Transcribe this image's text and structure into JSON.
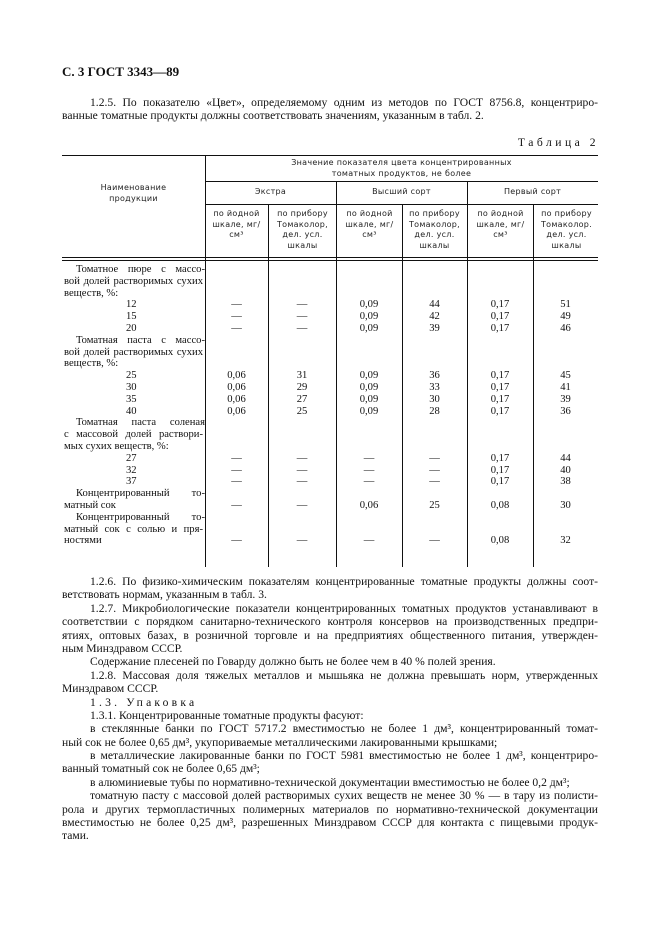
{
  "header": "С. 3 ГОСТ 3343—89",
  "para_125": [
    "1.2.5. По показателю «Цвет», определяемому одним из методов по ГОСТ 8756.8, концентриро-",
    "ванные томатные продукты должны соответствовать значениям, указанным в табл. 2."
  ],
  "table_caption": "Таблица 2",
  "table": {
    "col_product": "Наименование продукции",
    "group_header": "Значение показателя цвета концентрированных томатных продуктов, не более",
    "grades": [
      "Экстра",
      "Высший сорт",
      "Первый сорт"
    ],
    "sub_headers": [
      "по йодной шкале, мг/см³",
      "по прибору Томаколор, дел. усл. шкалы",
      "по йодной шкале, мг/см³",
      "по прибору Томаколор, дел. усл. шкалы",
      "по йодной шкале, мг/см³",
      "по прибору Томаколор. дел. усл. шкалы"
    ],
    "products": [
      {
        "name_lines": [
          "Томатное пюре с массо-",
          "вой долей растворимых сухих",
          "веществ, %:"
        ],
        "rows": [
          {
            "label": "12",
            "values": [
              "—",
              "—",
              "0,09",
              "44",
              "0,17",
              "51"
            ]
          },
          {
            "label": "15",
            "values": [
              "—",
              "—",
              "0,09",
              "42",
              "0,17",
              "49"
            ]
          },
          {
            "label": "20",
            "values": [
              "—",
              "—",
              "0,09",
              "39",
              "0,17",
              "46"
            ]
          }
        ]
      },
      {
        "name_lines": [
          "Томатная паста с массо-",
          "вой долей растворимых сухих",
          "веществ, %:"
        ],
        "rows": [
          {
            "label": "25",
            "values": [
              "0,06",
              "31",
              "0,09",
              "36",
              "0,17",
              "45"
            ]
          },
          {
            "label": "30",
            "values": [
              "0,06",
              "29",
              "0,09",
              "33",
              "0,17",
              "41"
            ]
          },
          {
            "label": "35",
            "values": [
              "0,06",
              "27",
              "0,09",
              "30",
              "0,17",
              "39"
            ]
          },
          {
            "label": "40",
            "values": [
              "0,06",
              "25",
              "0,09",
              "28",
              "0,17",
              "36"
            ]
          }
        ]
      },
      {
        "name_lines": [
          "Томатная паста соленая",
          "с массовой долей раствори-",
          "мых сухих веществ, %:"
        ],
        "rows": [
          {
            "label": "27",
            "values": [
              "—",
              "—",
              "—",
              "—",
              "0,17",
              "44"
            ]
          },
          {
            "label": "32",
            "values": [
              "—",
              "—",
              "—",
              "—",
              "0,17",
              "40"
            ]
          },
          {
            "label": "37",
            "values": [
              "—",
              "—",
              "—",
              "—",
              "0,17",
              "38"
            ]
          }
        ]
      },
      {
        "name_lines": [
          "Концентрированный то-",
          "матный сок"
        ],
        "values": [
          "—",
          "—",
          "0,06",
          "25",
          "0,08",
          "30"
        ]
      },
      {
        "name_lines": [
          "Концентрированный то-",
          "матный сок с солью и пря-",
          "ностями"
        ],
        "values": [
          "—",
          "—",
          "—",
          "—",
          "0,08",
          "32"
        ]
      }
    ]
  },
  "body_text": [
    {
      "lines": [
        "1.2.6. По физико-химическим показателям концентрированные томатные продукты должны соот-",
        "ветствовать нормам, указанным в табл. 3."
      ]
    },
    {
      "lines": [
        "1.2.7. Микробиологические показатели концентрированных томатных продуктов устанавливают в",
        "соответствии с порядком санитарно-технического контроля консервов на производственных предпри-",
        "ятиях, оптовых базах, в розничной торговле и на предприятиях общественного питания, утвержден-",
        "ным Минздравом СССР."
      ]
    },
    {
      "lines": [
        "Содержание плесеней по Говарду должно быть не более чем в 40 % полей зрения."
      ]
    },
    {
      "lines": [
        "1.2.8. Массовая доля тяжелых металлов и мышьяка не должна превышать норм, утвержденных",
        "Минздравом СССР."
      ]
    },
    {
      "lines": [
        "1.3. Упаковка"
      ],
      "spaced": true
    },
    {
      "lines": [
        "1.3.1. Концентрированные томатные продукты фасуют:"
      ]
    },
    {
      "lines": [
        "в стеклянные банки по ГОСТ 5717.2 вместимостью не более 1 дм³, концентрированный томат-",
        "ный сок не более 0,65 дм³, укупориваемые металлическими лакированными крышками;"
      ]
    },
    {
      "lines": [
        "в металлические лакированные банки по ГОСТ 5981 вместимостью не более 1 дм³, концентриро-",
        "ванный томатный сок не более 0,65 дм³;"
      ]
    },
    {
      "lines": [
        "в алюминиевые тубы по нормативно-технической документации вместимостью не более 0,2 дм³;"
      ]
    },
    {
      "lines": [
        "томатную пасту с массовой долей растворимых сухих веществ не менее 30 % — в тару из полисти-",
        "рола и других термопластичных полимерных материалов по нормативно-технической документации",
        "вместимостью не более 0,25 дм³, разрешенных Минздравом СССР для контакта с пищевыми продук-",
        "тами."
      ]
    }
  ]
}
